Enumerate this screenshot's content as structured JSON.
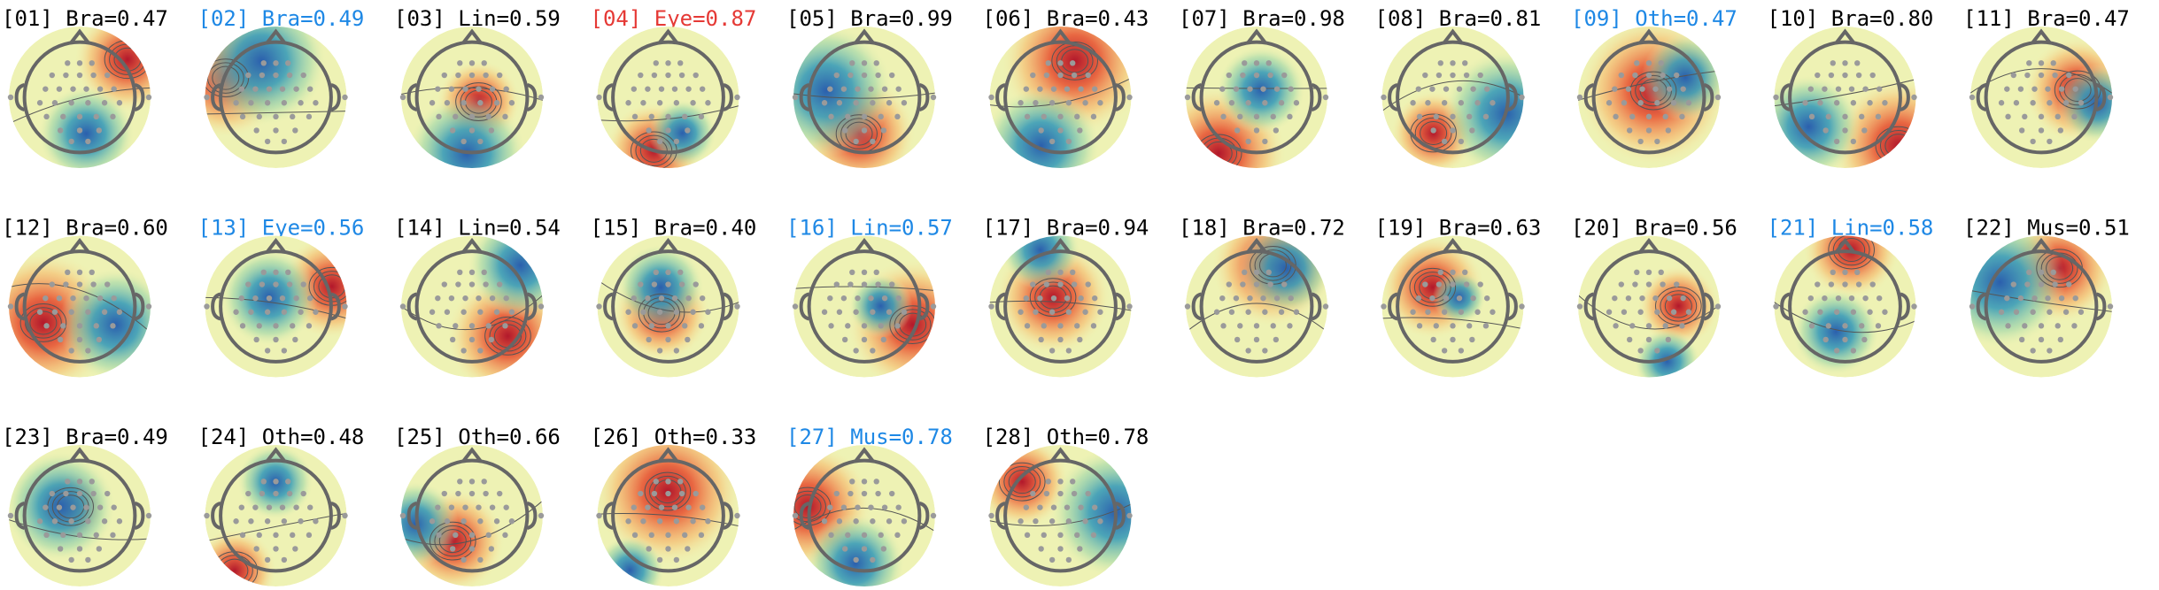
{
  "components": [
    {
      "title": "[01] Bra=0.47",
      "color": "#000000"
    },
    {
      "title": "[02] Bra=0.49",
      "color": "#1e88e5"
    },
    {
      "title": "[03] Lin=0.59",
      "color": "#000000"
    },
    {
      "title": "[04] Eye=0.87",
      "color": "#e53935"
    },
    {
      "title": "[05] Bra=0.99",
      "color": "#000000"
    },
    {
      "title": "[06] Bra=0.43",
      "color": "#000000"
    },
    {
      "title": "[07] Bra=0.98",
      "color": "#000000"
    },
    {
      "title": "[08] Bra=0.81",
      "color": "#000000"
    },
    {
      "title": "[09] Oth=0.47",
      "color": "#1e88e5"
    },
    {
      "title": "[10] Bra=0.80",
      "color": "#000000"
    },
    {
      "title": "[11] Bra=0.47",
      "color": "#000000"
    },
    {
      "title": "[12] Bra=0.60",
      "color": "#000000"
    },
    {
      "title": "[13] Eye=0.56",
      "color": "#1e88e5"
    },
    {
      "title": "[14] Lin=0.54",
      "color": "#000000"
    },
    {
      "title": "[15] Bra=0.40",
      "color": "#000000"
    },
    {
      "title": "[16] Lin=0.57",
      "color": "#1e88e5"
    },
    {
      "title": "[17] Bra=0.94",
      "color": "#000000"
    },
    {
      "title": "[18] Bra=0.72",
      "color": "#000000"
    },
    {
      "title": "[19] Bra=0.63",
      "color": "#000000"
    },
    {
      "title": "[20] Bra=0.56",
      "color": "#000000"
    },
    {
      "title": "[21] Lin=0.58",
      "color": "#1e88e5"
    },
    {
      "title": "[22] Mus=0.51",
      "color": "#000000"
    },
    {
      "title": "[23] Bra=0.49",
      "color": "#000000"
    },
    {
      "title": "[24] Oth=0.48",
      "color": "#000000"
    },
    {
      "title": "[25] Oth=0.66",
      "color": "#000000"
    },
    {
      "title": "[26] Oth=0.33",
      "color": "#000000"
    },
    {
      "title": "[27] Mus=0.78",
      "color": "#1e88e5"
    },
    {
      "title": "[28] Oth=0.78",
      "color": "#000000"
    }
  ]
}
